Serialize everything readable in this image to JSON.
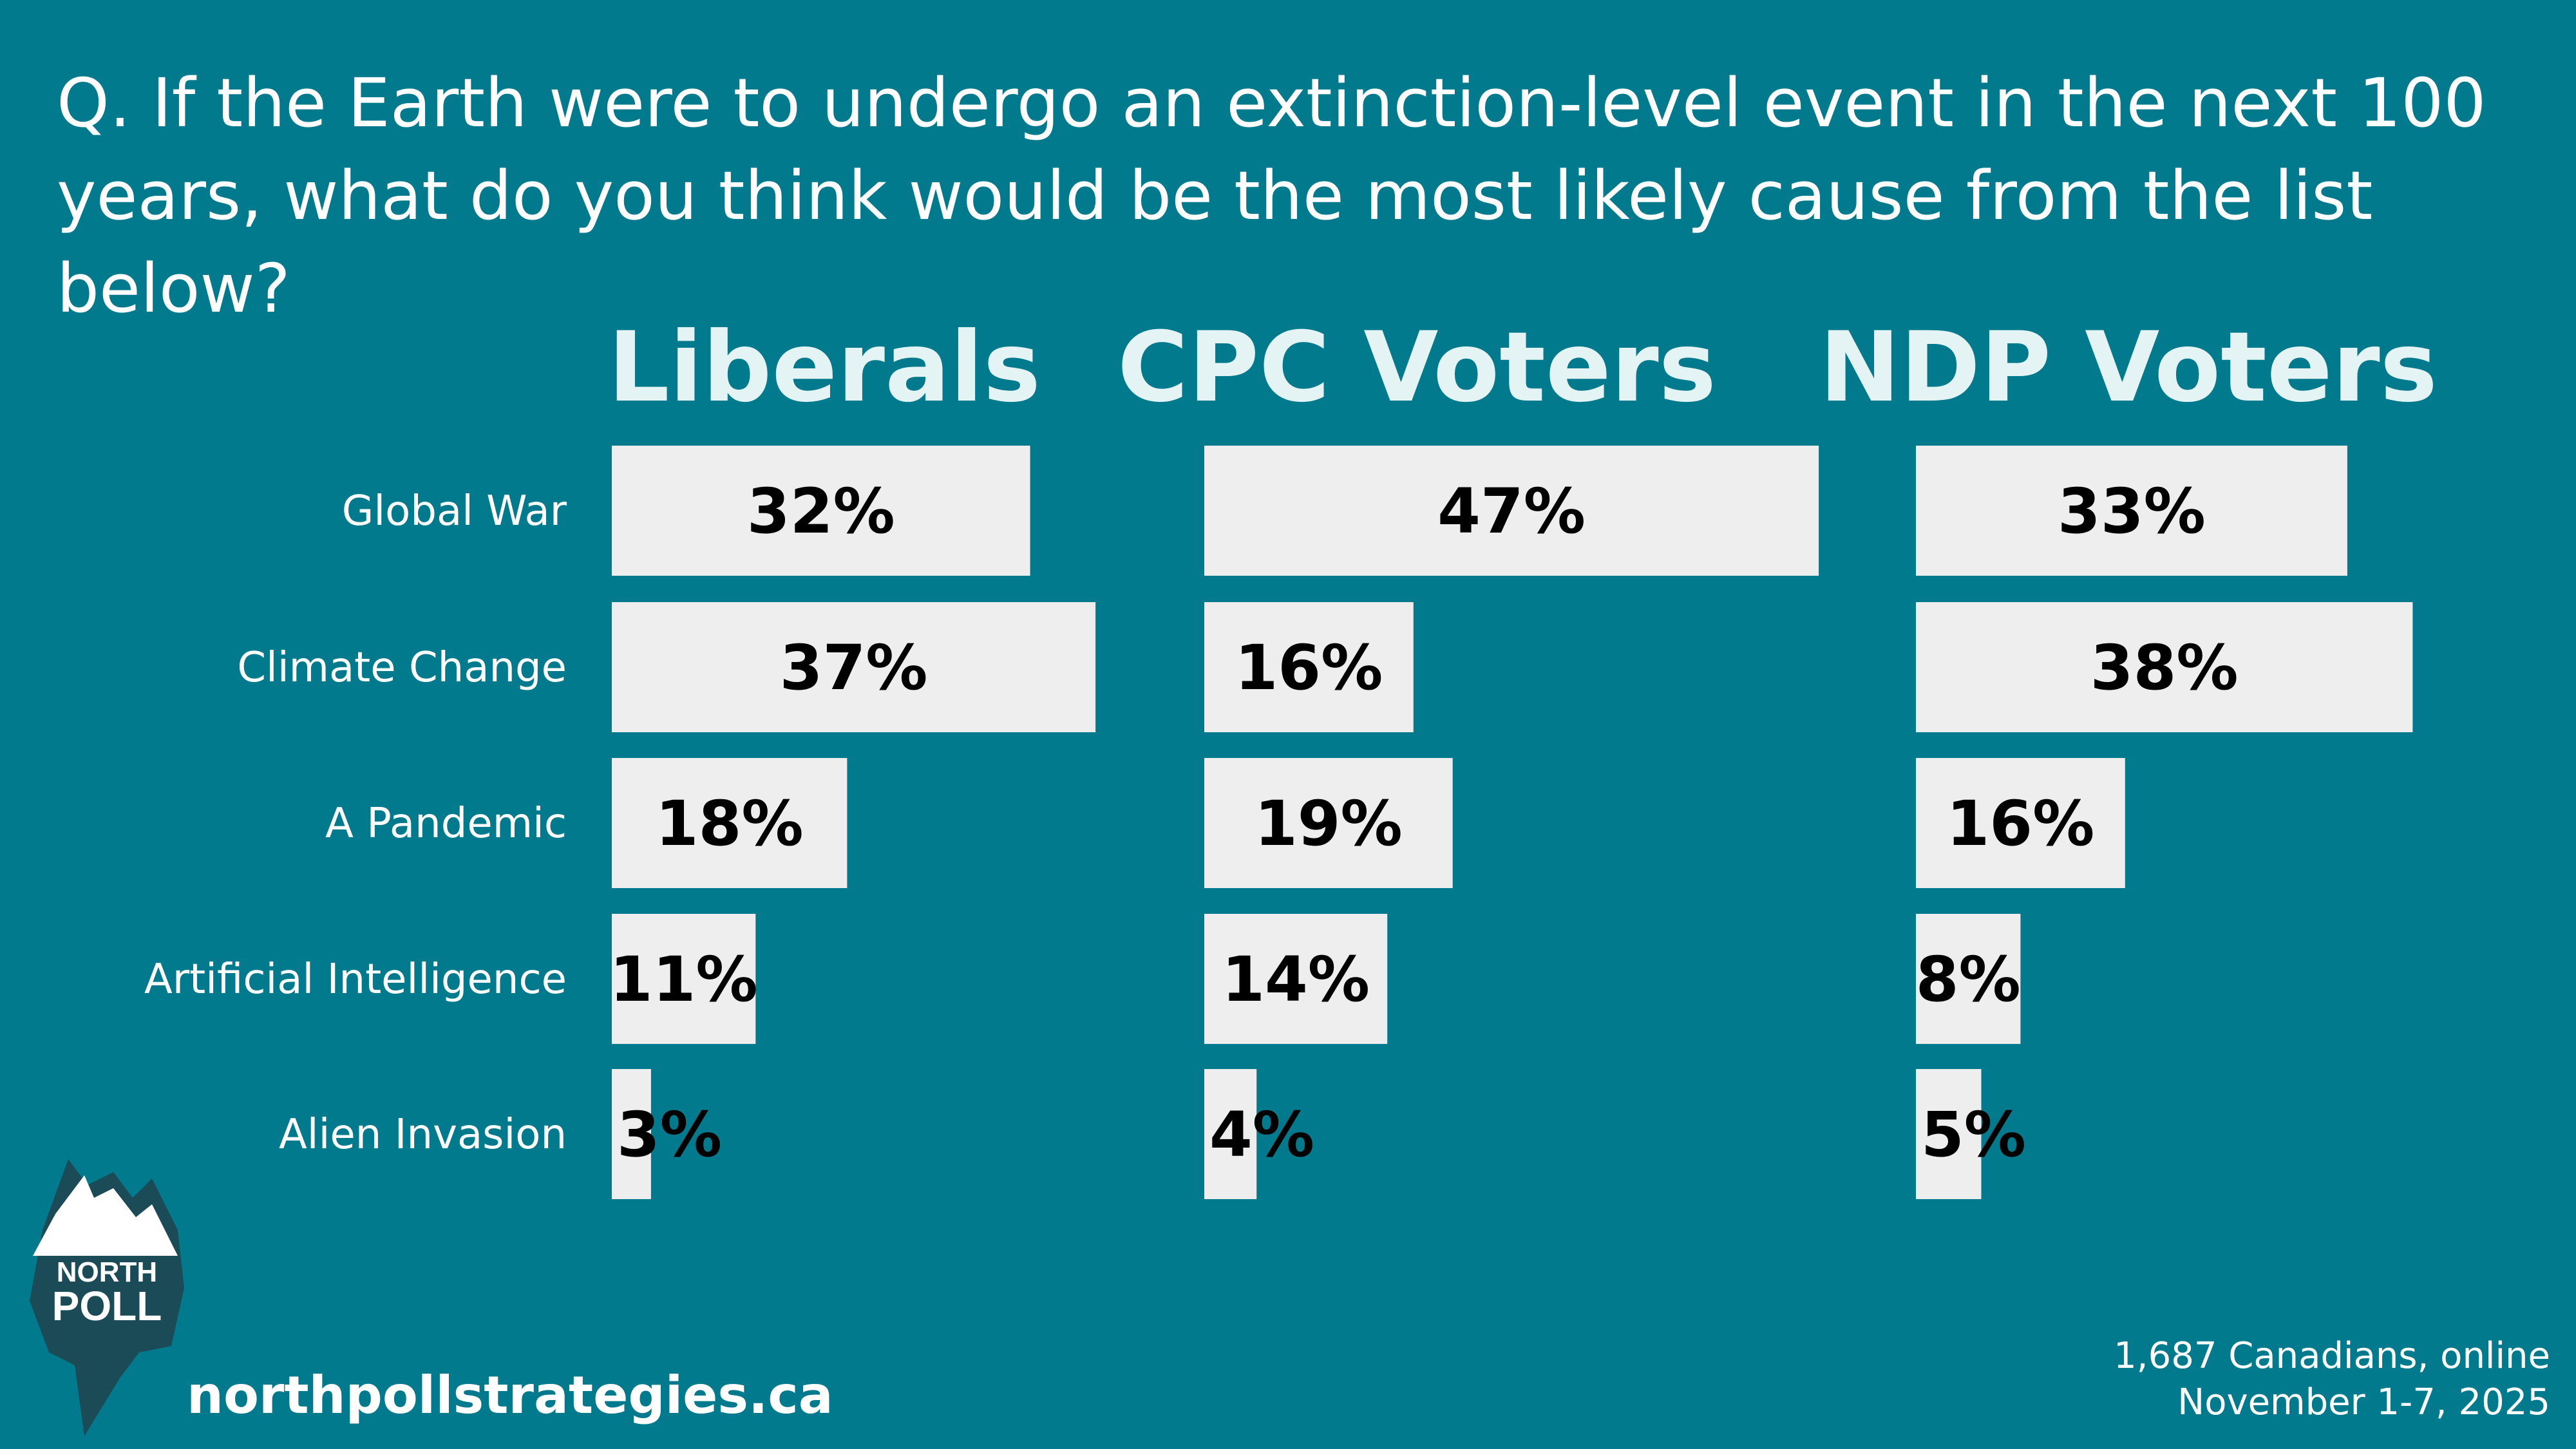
{
  "question": "Q. If the Earth were to undergo an extinction-level event in the next 100 years, what do you think would be the most likely cause from the list below?",
  "chart_data": {
    "type": "bar",
    "orientation": "horizontal",
    "title": "Q. If the Earth were to undergo an extinction-level event in the next 100 years, what do you think would be the most likely cause from the list below?",
    "categories": [
      "Global War",
      "Climate Change",
      "A Pandemic",
      "Artificial Intelligence",
      "Alien Invasion"
    ],
    "series": [
      {
        "name": "Liberals",
        "values": [
          32,
          37,
          18,
          11,
          3
        ]
      },
      {
        "name": "CPC Voters",
        "values": [
          47,
          16,
          19,
          14,
          4
        ]
      },
      {
        "name": "NDP Voters",
        "values": [
          33,
          38,
          16,
          8,
          5
        ]
      }
    ],
    "value_suffix": "%",
    "xlim": [
      0,
      50
    ],
    "grid": false
  },
  "logo": {
    "line1": "NORTH",
    "line2": "POLL"
  },
  "website": "northpollstrategies.ca",
  "footnote": {
    "line1": "1,687 Canadians, online",
    "line2": "November 1-7, 2025"
  },
  "colors": {
    "background": "#007A8C",
    "bar": "#EEEEEE",
    "title": "#E4F3F3",
    "text": "#FFFFFF",
    "logo_dark": "#1B4B57"
  }
}
